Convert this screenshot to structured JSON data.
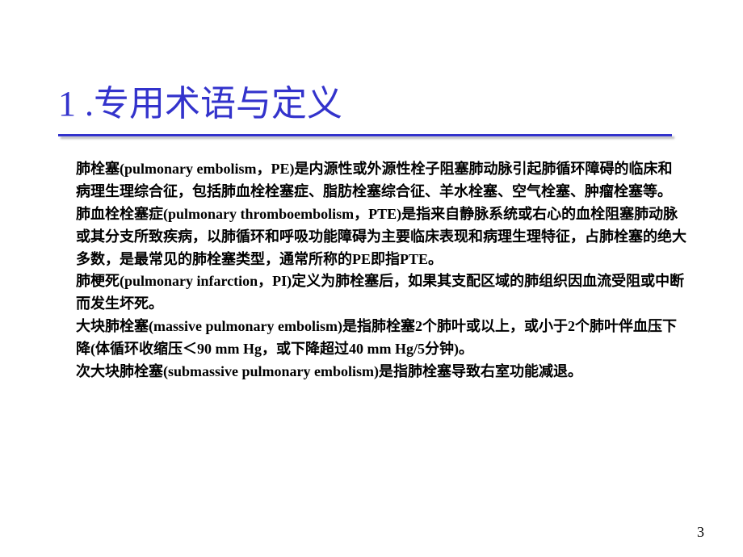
{
  "slide": {
    "title": "1 .专用术语与定义",
    "paragraphs": [
      "肺栓塞(pulmonary embolism，PE)是内源性或外源性栓子阻塞肺动脉引起肺循环障碍的临床和病理生理综合征，包括肺血栓栓塞症、脂肪栓塞综合征、羊水栓塞、空气栓塞、肿瘤栓塞等。",
      "肺血栓栓塞症(pulmonary thromboembolism，PTE)是指来自静脉系统或右心的血栓阻塞肺动脉或其分支所致疾病，以肺循环和呼吸功能障碍为主要临床表现和病理生理特征，占肺栓塞的绝大多数，是最常见的肺栓塞类型，通常所称的PE即指PTE。",
      "肺梗死(pulmonary infarction，PI)定义为肺栓塞后，如果其支配区域的肺组织因血流受阻或中断而发生坏死。",
      "大块肺栓塞(massive pulmonary embolism)是指肺栓塞2个肺叶或以上，或小于2个肺叶伴血压下降(体循环收缩压＜90 mm Hg，或下降超过40 mm Hg/5分钟)。",
      "次大块肺栓塞(submassive pulmonary embolism)是指肺栓塞导致右室功能减退。"
    ],
    "page_number": "3"
  },
  "styles": {
    "title_color": "#3333cc",
    "title_fontsize": 44,
    "body_fontsize": 18,
    "body_color": "#000000",
    "background_color": "#ffffff",
    "underline_color": "#3333cc",
    "underline_shadow": "rgba(120,120,120,0.5)"
  }
}
